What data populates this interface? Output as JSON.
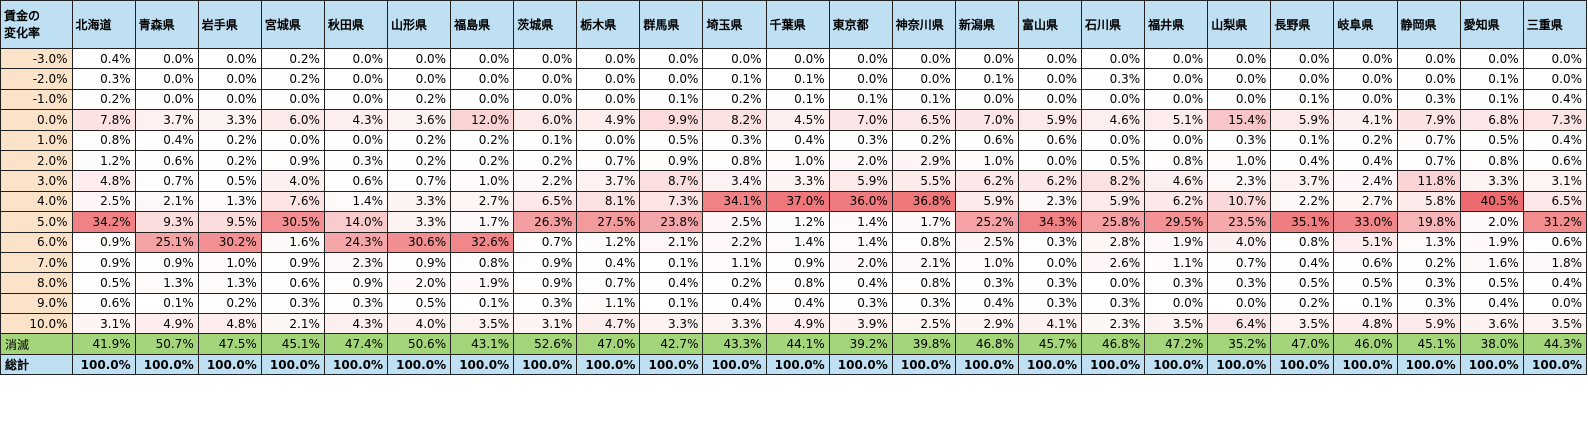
{
  "table": {
    "corner_label_line1": "賃金の",
    "corner_label_line2": "変化率",
    "prefectures": [
      "北海道",
      "青森県",
      "岩手県",
      "宮城県",
      "秋田県",
      "山形県",
      "福島県",
      "茨城県",
      "栃木県",
      "群馬県",
      "埼玉県",
      "千葉県",
      "東京都",
      "神奈川県",
      "新潟県",
      "富山県",
      "石川県",
      "福井県",
      "山梨県",
      "長野県",
      "岐阜県",
      "静岡県",
      "愛知県",
      "三重県"
    ],
    "rows": [
      {
        "label": "-3.0%",
        "values": [
          "0.4%",
          "0.0%",
          "0.0%",
          "0.2%",
          "0.0%",
          "0.0%",
          "0.0%",
          "0.0%",
          "0.0%",
          "0.0%",
          "0.0%",
          "0.0%",
          "0.0%",
          "0.0%",
          "0.0%",
          "0.0%",
          "0.0%",
          "0.0%",
          "0.0%",
          "0.0%",
          "0.0%",
          "0.0%",
          "0.0%",
          "0.0%"
        ]
      },
      {
        "label": "-2.0%",
        "values": [
          "0.3%",
          "0.0%",
          "0.0%",
          "0.2%",
          "0.0%",
          "0.0%",
          "0.0%",
          "0.0%",
          "0.0%",
          "0.0%",
          "0.1%",
          "0.1%",
          "0.0%",
          "0.0%",
          "0.1%",
          "0.0%",
          "0.3%",
          "0.0%",
          "0.0%",
          "0.0%",
          "0.0%",
          "0.0%",
          "0.1%",
          "0.0%"
        ]
      },
      {
        "label": "-1.0%",
        "values": [
          "0.2%",
          "0.0%",
          "0.0%",
          "0.0%",
          "0.0%",
          "0.2%",
          "0.0%",
          "0.0%",
          "0.0%",
          "0.1%",
          "0.2%",
          "0.1%",
          "0.1%",
          "0.1%",
          "0.0%",
          "0.0%",
          "0.0%",
          "0.0%",
          "0.0%",
          "0.1%",
          "0.0%",
          "0.3%",
          "0.1%",
          "0.4%"
        ]
      },
      {
        "label": "0.0%",
        "values": [
          "7.8%",
          "3.7%",
          "3.3%",
          "6.0%",
          "4.3%",
          "3.6%",
          "12.0%",
          "6.0%",
          "4.9%",
          "9.9%",
          "8.2%",
          "4.5%",
          "7.0%",
          "6.5%",
          "7.0%",
          "5.9%",
          "4.6%",
          "5.1%",
          "15.4%",
          "5.9%",
          "4.1%",
          "7.9%",
          "6.8%",
          "7.3%"
        ]
      },
      {
        "label": "1.0%",
        "values": [
          "0.8%",
          "0.4%",
          "0.2%",
          "0.0%",
          "0.0%",
          "0.2%",
          "0.2%",
          "0.1%",
          "0.0%",
          "0.5%",
          "0.3%",
          "0.4%",
          "0.3%",
          "0.2%",
          "0.6%",
          "0.6%",
          "0.0%",
          "0.0%",
          "0.3%",
          "0.1%",
          "0.2%",
          "0.7%",
          "0.5%",
          "0.4%"
        ]
      },
      {
        "label": "2.0%",
        "values": [
          "1.2%",
          "0.6%",
          "0.2%",
          "0.9%",
          "0.3%",
          "0.2%",
          "0.2%",
          "0.2%",
          "0.7%",
          "0.9%",
          "0.8%",
          "1.0%",
          "2.0%",
          "2.9%",
          "1.0%",
          "0.0%",
          "0.5%",
          "0.8%",
          "1.0%",
          "0.4%",
          "0.4%",
          "0.7%",
          "0.8%",
          "0.6%"
        ]
      },
      {
        "label": "3.0%",
        "values": [
          "4.8%",
          "0.7%",
          "0.5%",
          "4.0%",
          "0.6%",
          "0.7%",
          "1.0%",
          "2.2%",
          "3.7%",
          "8.7%",
          "3.4%",
          "3.3%",
          "5.9%",
          "5.5%",
          "6.2%",
          "6.2%",
          "8.2%",
          "4.6%",
          "2.3%",
          "3.7%",
          "2.4%",
          "11.8%",
          "3.3%",
          "3.1%"
        ]
      },
      {
        "label": "4.0%",
        "values": [
          "2.5%",
          "2.1%",
          "1.3%",
          "7.6%",
          "1.4%",
          "3.3%",
          "2.7%",
          "6.5%",
          "8.1%",
          "7.3%",
          "34.1%",
          "37.0%",
          "36.0%",
          "36.8%",
          "5.9%",
          "2.3%",
          "5.9%",
          "6.2%",
          "10.7%",
          "2.2%",
          "2.7%",
          "5.8%",
          "40.5%",
          "6.5%"
        ]
      },
      {
        "label": "5.0%",
        "values": [
          "34.2%",
          "9.3%",
          "9.5%",
          "30.5%",
          "14.0%",
          "3.3%",
          "1.7%",
          "26.3%",
          "27.5%",
          "23.8%",
          "2.5%",
          "1.2%",
          "1.4%",
          "1.7%",
          "25.2%",
          "34.3%",
          "25.8%",
          "29.5%",
          "23.5%",
          "35.1%",
          "33.0%",
          "19.8%",
          "2.0%",
          "31.2%"
        ]
      },
      {
        "label": "6.0%",
        "values": [
          "0.9%",
          "25.1%",
          "30.2%",
          "1.6%",
          "24.3%",
          "30.6%",
          "32.6%",
          "0.7%",
          "1.2%",
          "2.1%",
          "2.2%",
          "1.4%",
          "1.4%",
          "0.8%",
          "2.5%",
          "0.3%",
          "2.8%",
          "1.9%",
          "4.0%",
          "0.8%",
          "5.1%",
          "1.3%",
          "1.9%",
          "0.6%"
        ]
      },
      {
        "label": "7.0%",
        "values": [
          "0.9%",
          "0.9%",
          "1.0%",
          "0.9%",
          "2.3%",
          "0.9%",
          "0.8%",
          "0.9%",
          "0.4%",
          "0.1%",
          "1.1%",
          "0.9%",
          "2.0%",
          "2.1%",
          "1.0%",
          "0.0%",
          "2.6%",
          "1.1%",
          "0.7%",
          "0.4%",
          "0.6%",
          "0.2%",
          "1.6%",
          "1.8%"
        ]
      },
      {
        "label": "8.0%",
        "values": [
          "0.5%",
          "1.3%",
          "1.3%",
          "0.6%",
          "0.9%",
          "2.0%",
          "1.9%",
          "0.9%",
          "0.7%",
          "0.4%",
          "0.2%",
          "0.8%",
          "0.4%",
          "0.8%",
          "0.3%",
          "0.3%",
          "0.0%",
          "0.3%",
          "0.3%",
          "0.5%",
          "0.5%",
          "0.3%",
          "0.5%",
          "0.4%"
        ]
      },
      {
        "label": "9.0%",
        "values": [
          "0.6%",
          "0.1%",
          "0.2%",
          "0.3%",
          "0.3%",
          "0.5%",
          "0.1%",
          "0.3%",
          "1.1%",
          "0.1%",
          "0.4%",
          "0.4%",
          "0.3%",
          "0.3%",
          "0.4%",
          "0.3%",
          "0.3%",
          "0.0%",
          "0.0%",
          "0.2%",
          "0.1%",
          "0.3%",
          "0.4%",
          "0.0%"
        ]
      },
      {
        "label": "10.0%",
        "values": [
          "3.1%",
          "4.9%",
          "4.8%",
          "2.1%",
          "4.3%",
          "4.0%",
          "3.5%",
          "3.1%",
          "4.7%",
          "3.3%",
          "3.3%",
          "4.9%",
          "3.9%",
          "2.5%",
          "2.9%",
          "4.1%",
          "2.3%",
          "3.5%",
          "6.4%",
          "3.5%",
          "4.8%",
          "5.9%",
          "3.6%",
          "3.5%"
        ]
      }
    ],
    "vanish_row": {
      "label": "消滅",
      "values": [
        "41.9%",
        "50.7%",
        "47.5%",
        "45.1%",
        "47.4%",
        "50.6%",
        "43.1%",
        "52.6%",
        "47.0%",
        "42.7%",
        "43.3%",
        "44.1%",
        "39.2%",
        "39.8%",
        "46.8%",
        "45.7%",
        "46.8%",
        "47.2%",
        "35.2%",
        "47.0%",
        "46.0%",
        "45.1%",
        "38.0%",
        "44.3%"
      ]
    },
    "total_row": {
      "label": "総計",
      "values": [
        "100.0%",
        "100.0%",
        "100.0%",
        "100.0%",
        "100.0%",
        "100.0%",
        "100.0%",
        "100.0%",
        "100.0%",
        "100.0%",
        "100.0%",
        "100.0%",
        "100.0%",
        "100.0%",
        "100.0%",
        "100.0%",
        "100.0%",
        "100.0%",
        "100.0%",
        "100.0%",
        "100.0%",
        "100.0%",
        "100.0%",
        "100.0%"
      ]
    }
  },
  "colors": {
    "header_bg": "#bfe0f3",
    "row_label_bg": "#fbe3c9",
    "vanish_bg": "#a4d57b",
    "total_bg": "#bfe0f3",
    "heat_low": "#ffffff",
    "heat_high": "#ed6a6e"
  }
}
